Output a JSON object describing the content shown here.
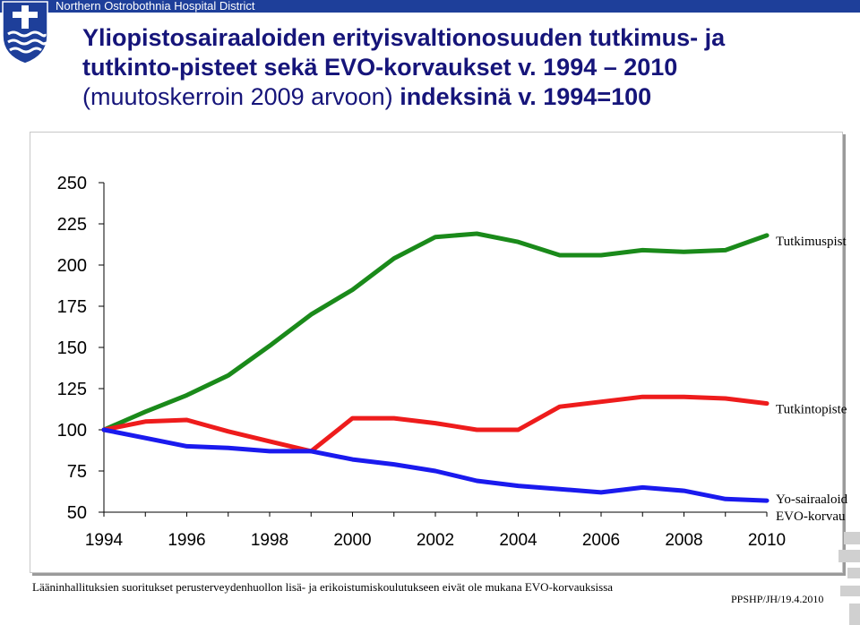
{
  "header": {
    "org_name": "Northern Ostrobothnia Hospital District",
    "logo_icon": "hospital-district-shield-icon",
    "brand_color": "#1e3f9a"
  },
  "title": {
    "line1": "Yliopistosairaaloiden erityisvaltionosuuden tutkimus- ja",
    "line2": "tutkinto-pisteet sekä EVO-korvaukset v. 1994 – 2010",
    "line3_regular": "(muutoskerroin 2009 arvoon) ",
    "line3_bold": "indeksinä v. 1994=100"
  },
  "chart_data": {
    "type": "line",
    "x": [
      1994,
      1995,
      1996,
      1997,
      1998,
      1999,
      2000,
      2001,
      2002,
      2003,
      2004,
      2005,
      2006,
      2007,
      2008,
      2009,
      2010
    ],
    "x_ticks": [
      "1994",
      "1996",
      "1998",
      "2000",
      "2002",
      "2004",
      "2006",
      "2008",
      "2010"
    ],
    "y_ticks": [
      "250",
      "225",
      "200",
      "175",
      "150",
      "125",
      "100",
      "75",
      "50"
    ],
    "ylim": [
      50,
      250
    ],
    "grid": false,
    "legend": "end-of-line labels",
    "series": [
      {
        "name": "Tutkimuspist",
        "color": "#1a8a1a",
        "values": [
          100,
          111,
          121,
          133,
          151,
          170,
          185,
          204,
          217,
          219,
          214,
          206,
          206,
          209,
          208,
          209,
          218
        ]
      },
      {
        "name": "Tutkintopiste",
        "color": "#ee1c1c",
        "values": [
          100,
          105,
          106,
          99,
          93,
          87,
          107,
          107,
          104,
          100,
          100,
          114,
          117,
          120,
          120,
          119,
          116
        ]
      },
      {
        "name": "Yo-sairaaloid EVO-korvau",
        "label_lines": [
          "Yo-sairaaloid",
          "EVO-korvau"
        ],
        "color": "#1a1aee",
        "values": [
          100,
          95,
          90,
          89,
          87,
          87,
          82,
          79,
          75,
          69,
          66,
          64,
          62,
          65,
          63,
          58,
          57
        ]
      }
    ]
  },
  "footnote": "Lääninhallituksien suoritukset perusterveydenhuollon lisä- ja erikoistumiskoulutukseen eivät ole mukana EVO-korvauksissa",
  "reference": "PPSHP/JH/19.4.2010"
}
